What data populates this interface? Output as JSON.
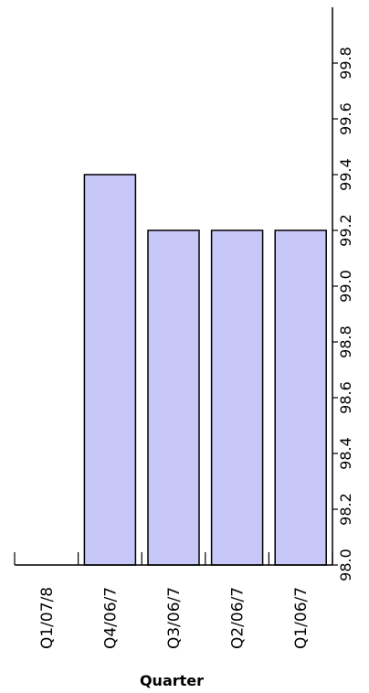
{
  "chart_data": {
    "type": "bar",
    "orientation": "vertical",
    "categories": [
      "Q1/07/8",
      "Q4/06/7",
      "Q3/06/7",
      "Q2/06/7",
      "Q1/06/7"
    ],
    "values": [
      98.0,
      99.4,
      99.2,
      99.2,
      99.2
    ],
    "xlabel": "Quarter",
    "ylabel": "",
    "ylim": [
      98.0,
      100.0
    ],
    "value_ticks": [
      "98.0",
      "98.2",
      "98.4",
      "98.6",
      "98.8",
      "99.0",
      "99.2",
      "99.4",
      "99.6",
      "99.8"
    ],
    "grid": false,
    "legend": "none",
    "bar_color": "#c8c8f8",
    "bar_edge_color": "#000000"
  }
}
